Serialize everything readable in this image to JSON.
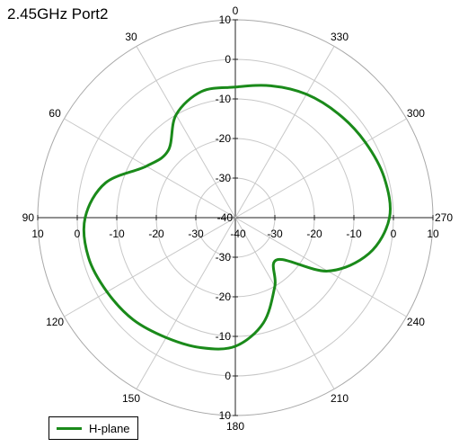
{
  "chart_data": {
    "type": "polar-line",
    "title": "2.45GHz Port2",
    "angle_ticks": [
      "0",
      "30",
      "60",
      "90",
      "120",
      "150",
      "180",
      "210",
      "240",
      "270",
      "300",
      "330"
    ],
    "angle_direction": "counterclockwise",
    "angle_zero": "top",
    "r_range": [
      -40,
      10
    ],
    "r_ticks": [
      -40,
      -30,
      -20,
      -10,
      0,
      10
    ],
    "grid": true,
    "legend": "bottom-left",
    "series": [
      {
        "name": "H-plane",
        "color": "#1a8a1a",
        "angle_deg": [
          0,
          15,
          30,
          45,
          60,
          75,
          90,
          105,
          120,
          135,
          150,
          165,
          180,
          195,
          210,
          225,
          240,
          255,
          270,
          285,
          300,
          315,
          330,
          345,
          360
        ],
        "values": [
          -7,
          -7,
          -10,
          -16,
          -14,
          -6,
          -2,
          -1.5,
          -2.5,
          -3.5,
          -5,
          -6,
          -7.5,
          -12.5,
          -20,
          -25,
          -13,
          -5,
          -1,
          -1,
          -2,
          -3,
          -4,
          -5.5,
          -7
        ]
      }
    ]
  }
}
